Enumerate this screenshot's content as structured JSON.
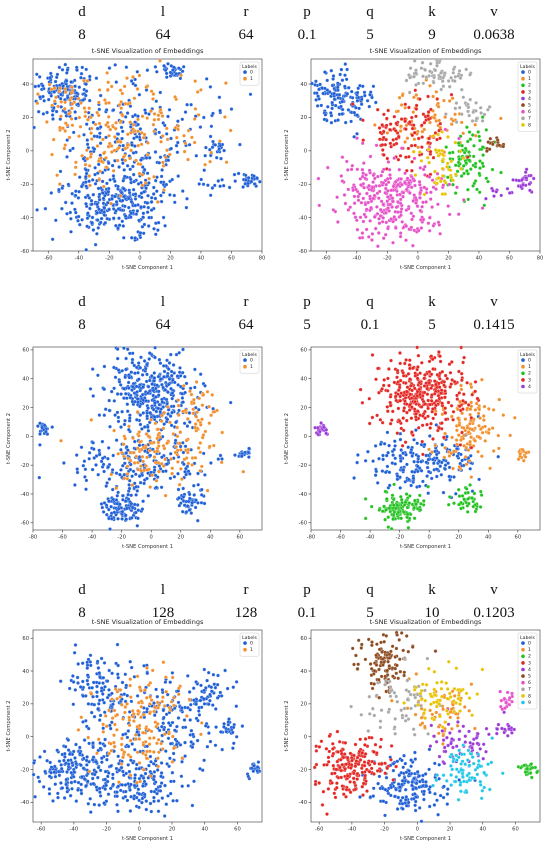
{
  "param_headers": [
    "d",
    "l",
    "r",
    "p",
    "q",
    "k",
    "v"
  ],
  "param_rows": [
    [
      "8",
      "64",
      "64",
      "0.1",
      "5",
      "9",
      "0.0638"
    ],
    [
      "8",
      "64",
      "64",
      "5",
      "0.1",
      "5",
      "0.1415"
    ],
    [
      "8",
      "128",
      "128",
      "0.1",
      "5",
      "10",
      "0.1203"
    ]
  ],
  "palette": [
    "#1f5fd6",
    "#f28e2b",
    "#21c21f",
    "#e32622",
    "#9b3ad6",
    "#8c4a1e",
    "#e650c8",
    "#a8a8a8",
    "#e8c300",
    "#1ec8e6"
  ],
  "chart_data": [
    {
      "type": "scatter",
      "row": 0,
      "col": 0,
      "title": "t-SNE Visualization of Embeddings",
      "xlabel": "t-SNE Component 1",
      "ylabel": "t-SNE Component 2",
      "xlim": [
        -70,
        80
      ],
      "ylim": [
        -60,
        55
      ],
      "xticks": [
        -60,
        -40,
        -20,
        0,
        20,
        40,
        60,
        80
      ],
      "yticks": [
        -60,
        -40,
        -20,
        0,
        20,
        40
      ],
      "legend_title": "Labels",
      "legend_labels": [
        "0",
        "1"
      ],
      "legend_placement": "top-right",
      "clusters": [
        {
          "label": 0,
          "cx": -50,
          "cy": 35,
          "sx": 10,
          "sy": 8,
          "n": 150
        },
        {
          "label": 0,
          "cx": -15,
          "cy": -30,
          "sx": 18,
          "sy": 11,
          "n": 320
        },
        {
          "label": 0,
          "cx": 5,
          "cy": 10,
          "sx": 30,
          "sy": 18,
          "n": 220
        },
        {
          "label": 0,
          "cx": 22,
          "cy": 48,
          "sx": 4,
          "sy": 2,
          "n": 25
        },
        {
          "label": 0,
          "cx": 50,
          "cy": 2,
          "sx": 3,
          "sy": 3,
          "n": 18
        },
        {
          "label": 0,
          "cx": 72,
          "cy": -18,
          "sx": 3,
          "sy": 2,
          "n": 30
        },
        {
          "label": 0,
          "cx": 50,
          "cy": -20,
          "sx": 9,
          "sy": 2,
          "n": 12
        },
        {
          "label": 1,
          "cx": 0,
          "cy": 15,
          "sx": 25,
          "sy": 18,
          "n": 150
        },
        {
          "label": 1,
          "cx": -25,
          "cy": 0,
          "sx": 15,
          "sy": 14,
          "n": 60
        },
        {
          "label": 1,
          "cx": -50,
          "cy": 30,
          "sx": 8,
          "sy": 8,
          "n": 30
        }
      ]
    },
    {
      "type": "scatter",
      "row": 0,
      "col": 1,
      "title": "t-SNE Visualization of Embeddings",
      "xlabel": "t-SNE Component 1",
      "ylabel": "t-SNE Component 2",
      "xlim": [
        -70,
        80
      ],
      "ylim": [
        -60,
        55
      ],
      "xticks": [
        -60,
        -40,
        -20,
        0,
        20,
        40,
        60,
        80
      ],
      "yticks": [
        -60,
        -40,
        -20,
        0,
        20,
        40
      ],
      "legend_title": "Labels",
      "legend_labels": [
        "0",
        "1",
        "2",
        "3",
        "4",
        "5",
        "6",
        "7",
        "8"
      ],
      "legend_placement": "top-right",
      "clusters": [
        {
          "label": 0,
          "cx": -50,
          "cy": 32,
          "sx": 10,
          "sy": 8,
          "n": 150
        },
        {
          "label": 1,
          "cx": 5,
          "cy": 20,
          "sx": 15,
          "sy": 10,
          "n": 80
        },
        {
          "label": 2,
          "cx": 32,
          "cy": -5,
          "sx": 7,
          "sy": 10,
          "n": 90
        },
        {
          "label": 3,
          "cx": -8,
          "cy": 10,
          "sx": 14,
          "sy": 12,
          "n": 120
        },
        {
          "label": 4,
          "cx": 70,
          "cy": -18,
          "sx": 3,
          "sy": 3,
          "n": 30
        },
        {
          "label": 4,
          "cx": 55,
          "cy": -25,
          "sx": 6,
          "sy": 2,
          "n": 10
        },
        {
          "label": 5,
          "cx": 50,
          "cy": 3,
          "sx": 3,
          "sy": 2,
          "n": 20
        },
        {
          "label": 6,
          "cx": -15,
          "cy": -28,
          "sx": 18,
          "sy": 12,
          "n": 340
        },
        {
          "label": 7,
          "cx": 10,
          "cy": 45,
          "sx": 10,
          "sy": 4,
          "n": 70
        },
        {
          "label": 7,
          "cx": 35,
          "cy": 25,
          "sx": 6,
          "sy": 4,
          "n": 30
        },
        {
          "label": 8,
          "cx": 15,
          "cy": -8,
          "sx": 8,
          "sy": 9,
          "n": 50
        }
      ]
    },
    {
      "type": "scatter",
      "row": 1,
      "col": 0,
      "title": "",
      "xlabel": "t-SNE Component 1",
      "ylabel": "t-SNE Component 2",
      "xlim": [
        -80,
        75
      ],
      "ylim": [
        -65,
        62
      ],
      "xticks": [
        -80,
        -60,
        -40,
        -20,
        0,
        20,
        40,
        60
      ],
      "yticks": [
        -60,
        -40,
        -20,
        0,
        20,
        40,
        60
      ],
      "legend_title": "Labels",
      "legend_labels": [
        "0",
        "1"
      ],
      "legend_placement": "top-right",
      "clusters": [
        {
          "label": 0,
          "cx": -73,
          "cy": 5,
          "sx": 2,
          "sy": 2,
          "n": 25
        },
        {
          "label": 0,
          "cx": 0,
          "cy": 30,
          "sx": 16,
          "sy": 14,
          "n": 380
        },
        {
          "label": 0,
          "cx": -5,
          "cy": -20,
          "sx": 22,
          "sy": 10,
          "n": 200
        },
        {
          "label": 0,
          "cx": -20,
          "cy": -50,
          "sx": 7,
          "sy": 6,
          "n": 110
        },
        {
          "label": 0,
          "cx": 27,
          "cy": -45,
          "sx": 5,
          "sy": 5,
          "n": 45
        },
        {
          "label": 0,
          "cx": 63,
          "cy": -12,
          "sx": 3,
          "sy": 2,
          "n": 18
        },
        {
          "label": 1,
          "cx": 5,
          "cy": -10,
          "sx": 20,
          "sy": 12,
          "n": 140
        },
        {
          "label": 1,
          "cx": 30,
          "cy": 20,
          "sx": 8,
          "sy": 10,
          "n": 40
        }
      ]
    },
    {
      "type": "scatter",
      "row": 1,
      "col": 1,
      "title": "",
      "xlabel": "t-SNE Component 1",
      "ylabel": "t-SNE Component 2",
      "xlim": [
        -80,
        75
      ],
      "ylim": [
        -65,
        62
      ],
      "xticks": [
        -80,
        -60,
        -40,
        -20,
        0,
        20,
        40,
        60
      ],
      "yticks": [
        -60,
        -40,
        -20,
        0,
        20,
        40,
        60
      ],
      "legend_title": "Labels",
      "legend_labels": [
        "0",
        "1",
        "2",
        "3",
        "4"
      ],
      "legend_placement": "top-right",
      "clusters": [
        {
          "label": 0,
          "cx": -5,
          "cy": -18,
          "sx": 18,
          "sy": 9,
          "n": 200
        },
        {
          "label": 1,
          "cx": 28,
          "cy": 5,
          "sx": 10,
          "sy": 15,
          "n": 130
        },
        {
          "label": 1,
          "cx": 63,
          "cy": -12,
          "sx": 3,
          "sy": 2,
          "n": 18
        },
        {
          "label": 2,
          "cx": -20,
          "cy": -50,
          "sx": 8,
          "sy": 6,
          "n": 130
        },
        {
          "label": 2,
          "cx": 25,
          "cy": -45,
          "sx": 5,
          "sy": 4,
          "n": 40
        },
        {
          "label": 3,
          "cx": -5,
          "cy": 30,
          "sx": 16,
          "sy": 14,
          "n": 380
        },
        {
          "label": 4,
          "cx": -73,
          "cy": 5,
          "sx": 2,
          "sy": 2,
          "n": 25
        }
      ]
    },
    {
      "type": "scatter",
      "row": 2,
      "col": 0,
      "title": "t-SNE Visualization of Embeddings",
      "xlabel": "t-SNE Component 1",
      "ylabel": "t-SNE Component 2",
      "xlim": [
        -65,
        75
      ],
      "ylim": [
        -52,
        65
      ],
      "xticks": [
        -60,
        -40,
        -20,
        0,
        20,
        40,
        60
      ],
      "yticks": [
        -40,
        -20,
        0,
        20,
        40,
        60
      ],
      "legend_title": "Labels",
      "legend_labels": [
        "0",
        "1"
      ],
      "legend_placement": "top-right",
      "clusters": [
        {
          "label": 0,
          "cx": -25,
          "cy": 30,
          "sx": 10,
          "sy": 10,
          "n": 120
        },
        {
          "label": 0,
          "cx": -35,
          "cy": -20,
          "sx": 16,
          "sy": 9,
          "n": 220
        },
        {
          "label": 0,
          "cx": 0,
          "cy": -30,
          "sx": 12,
          "sy": 9,
          "n": 150
        },
        {
          "label": 0,
          "cx": 20,
          "cy": 10,
          "sx": 18,
          "sy": 16,
          "n": 200
        },
        {
          "label": 0,
          "cx": 42,
          "cy": 30,
          "sx": 5,
          "sy": 5,
          "n": 30
        },
        {
          "label": 0,
          "cx": 55,
          "cy": 5,
          "sx": 3,
          "sy": 3,
          "n": 20
        },
        {
          "label": 0,
          "cx": 70,
          "cy": -20,
          "sx": 2,
          "sy": 2,
          "n": 20
        },
        {
          "label": 1,
          "cx": 0,
          "cy": 15,
          "sx": 15,
          "sy": 12,
          "n": 110
        },
        {
          "label": 1,
          "cx": -5,
          "cy": -10,
          "sx": 12,
          "sy": 8,
          "n": 50
        }
      ]
    },
    {
      "type": "scatter",
      "row": 2,
      "col": 1,
      "title": "t-SNE Visualization of Embeddings",
      "xlabel": "t-SNE Component 1",
      "ylabel": "t-SNE Component 2",
      "xlim": [
        -65,
        75
      ],
      "ylim": [
        -52,
        65
      ],
      "xticks": [
        -60,
        -40,
        -20,
        0,
        20,
        40,
        60
      ],
      "yticks": [
        -40,
        -20,
        0,
        20,
        40,
        60
      ],
      "legend_title": "Labels",
      "legend_labels": [
        "0",
        "1",
        "2",
        "3",
        "4",
        "5",
        "6",
        "7",
        "8",
        "9"
      ],
      "legend_placement": "top-right",
      "clusters": [
        {
          "label": 0,
          "cx": -5,
          "cy": -30,
          "sx": 12,
          "sy": 9,
          "n": 180
        },
        {
          "label": 1,
          "cx": 15,
          "cy": 15,
          "sx": 10,
          "sy": 8,
          "n": 60
        },
        {
          "label": 2,
          "cx": 68,
          "cy": -20,
          "sx": 3,
          "sy": 2,
          "n": 25
        },
        {
          "label": 3,
          "cx": -40,
          "cy": -20,
          "sx": 12,
          "sy": 9,
          "n": 200
        },
        {
          "label": 4,
          "cx": 25,
          "cy": -5,
          "sx": 8,
          "sy": 7,
          "n": 60
        },
        {
          "label": 4,
          "cx": 55,
          "cy": 5,
          "sx": 3,
          "sy": 3,
          "n": 20
        },
        {
          "label": 5,
          "cx": -20,
          "cy": 45,
          "sx": 8,
          "sy": 9,
          "n": 120
        },
        {
          "label": 6,
          "cx": 55,
          "cy": 20,
          "sx": 3,
          "sy": 3,
          "n": 20
        },
        {
          "label": 7,
          "cx": -10,
          "cy": 20,
          "sx": 12,
          "sy": 10,
          "n": 60
        },
        {
          "label": 8,
          "cx": 15,
          "cy": 25,
          "sx": 10,
          "sy": 8,
          "n": 70
        },
        {
          "label": 9,
          "cx": 30,
          "cy": -20,
          "sx": 8,
          "sy": 8,
          "n": 80
        }
      ]
    }
  ]
}
